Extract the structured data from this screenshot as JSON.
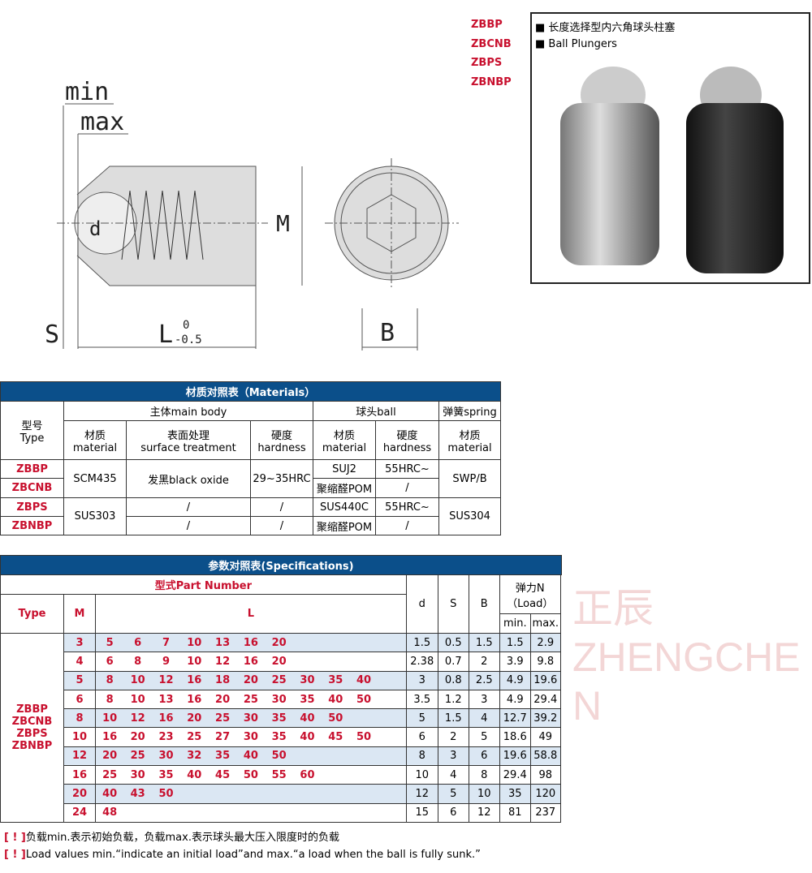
{
  "codes": [
    "ZBBP",
    "ZBCNB",
    "ZBPS",
    "ZBNBP"
  ],
  "photo": {
    "title_cn": "长度选择型内六角球头柱塞",
    "title_en": "Ball Plungers"
  },
  "diagram": {
    "min": "min",
    "max": "max",
    "d": "d",
    "M": "M",
    "S": "S",
    "L": "L",
    "tol_upper": "0",
    "tol_lower": "-0.5",
    "B": "B"
  },
  "watermark": "正辰 ZHENGCHEN",
  "materials": {
    "title": "材质对照表（Materials）",
    "type_header": "型号\nType",
    "groups": [
      "主体main body",
      "球头ball",
      "弹簧spring"
    ],
    "sub": [
      "材质\nmaterial",
      "表面处理\nsurface treatment",
      "硬度\nhardness",
      "材质\nmaterial",
      "硬度\nhardness",
      "材质\nmaterial"
    ],
    "rows": [
      {
        "type": "ZBBP",
        "body_mat": "SCM435",
        "surface": "发黑black oxide",
        "hardness": "29~35HRC",
        "ball_mat": "SUJ2",
        "ball_hard": "55HRC~",
        "spring": "SWP/B"
      },
      {
        "type": "ZBCNB",
        "ball_mat": "聚缩醛POM",
        "ball_hard": "/"
      },
      {
        "type": "ZBPS",
        "body_mat": "SUS303",
        "surface": "/",
        "hardness": "/",
        "ball_mat": "SUS440C",
        "ball_hard": "55HRC~",
        "spring": "SUS304"
      },
      {
        "type": "ZBNBP",
        "surface": "/",
        "hardness": "/",
        "ball_mat": "聚缩醛POM",
        "ball_hard": "/"
      }
    ]
  },
  "specs": {
    "title": "参数对照表(Specifications)",
    "part_number": "型式Part Number",
    "type": "Type",
    "M": "M",
    "L": "L",
    "d": "d",
    "S": "S",
    "B": "B",
    "load": "弹力N\n（Load）",
    "min": "min.",
    "max": "max.",
    "types": "ZBBP\nZBCNB\nZBPS\nZBNBP",
    "rows": [
      {
        "M": "3",
        "L": [
          "5",
          "6",
          "7",
          "10",
          "13",
          "16",
          "20"
        ],
        "d": "1.5",
        "S": "0.5",
        "B": "1.5",
        "min": "1.5",
        "max": "2.9"
      },
      {
        "M": "4",
        "L": [
          "6",
          "8",
          "9",
          "10",
          "12",
          "16",
          "20"
        ],
        "d": "2.38",
        "S": "0.7",
        "B": "2",
        "min": "3.9",
        "max": "9.8"
      },
      {
        "M": "5",
        "L": [
          "8",
          "10",
          "12",
          "16",
          "18",
          "20",
          "25",
          "30",
          "35",
          "40"
        ],
        "d": "3",
        "S": "0.8",
        "B": "2.5",
        "min": "4.9",
        "max": "19.6"
      },
      {
        "M": "6",
        "L": [
          "8",
          "10",
          "13",
          "16",
          "20",
          "25",
          "30",
          "35",
          "40",
          "50"
        ],
        "d": "3.5",
        "S": "1.2",
        "B": "3",
        "min": "4.9",
        "max": "29.4"
      },
      {
        "M": "8",
        "L": [
          "10",
          "12",
          "16",
          "20",
          "25",
          "30",
          "35",
          "40",
          "50"
        ],
        "d": "5",
        "S": "1.5",
        "B": "4",
        "min": "12.7",
        "max": "39.2"
      },
      {
        "M": "10",
        "L": [
          "16",
          "20",
          "23",
          "25",
          "27",
          "30",
          "35",
          "40",
          "45",
          "50"
        ],
        "d": "6",
        "S": "2",
        "B": "5",
        "min": "18.6",
        "max": "49"
      },
      {
        "M": "12",
        "L": [
          "20",
          "25",
          "30",
          "32",
          "35",
          "40",
          "50"
        ],
        "d": "8",
        "S": "3",
        "B": "6",
        "min": "19.6",
        "max": "58.8"
      },
      {
        "M": "16",
        "L": [
          "25",
          "30",
          "35",
          "40",
          "45",
          "50",
          "55",
          "60"
        ],
        "d": "10",
        "S": "4",
        "B": "8",
        "min": "29.4",
        "max": "98"
      },
      {
        "M": "20",
        "L": [
          "40",
          "43",
          "50"
        ],
        "d": "12",
        "S": "5",
        "B": "10",
        "min": "35",
        "max": "120"
      },
      {
        "M": "24",
        "L": [
          "48"
        ],
        "d": "15",
        "S": "6",
        "B": "12",
        "min": "81",
        "max": "237"
      }
    ]
  },
  "notes": [
    {
      "mark": "[ ! ]",
      "text": "负载min.表示初始负载，负载max.表示球头最大压入限度时的负载"
    },
    {
      "mark": "[ ! ]",
      "text": "Load values min.“indicate an initial load”and max.“a load when the ball is fully sunk.”"
    }
  ]
}
